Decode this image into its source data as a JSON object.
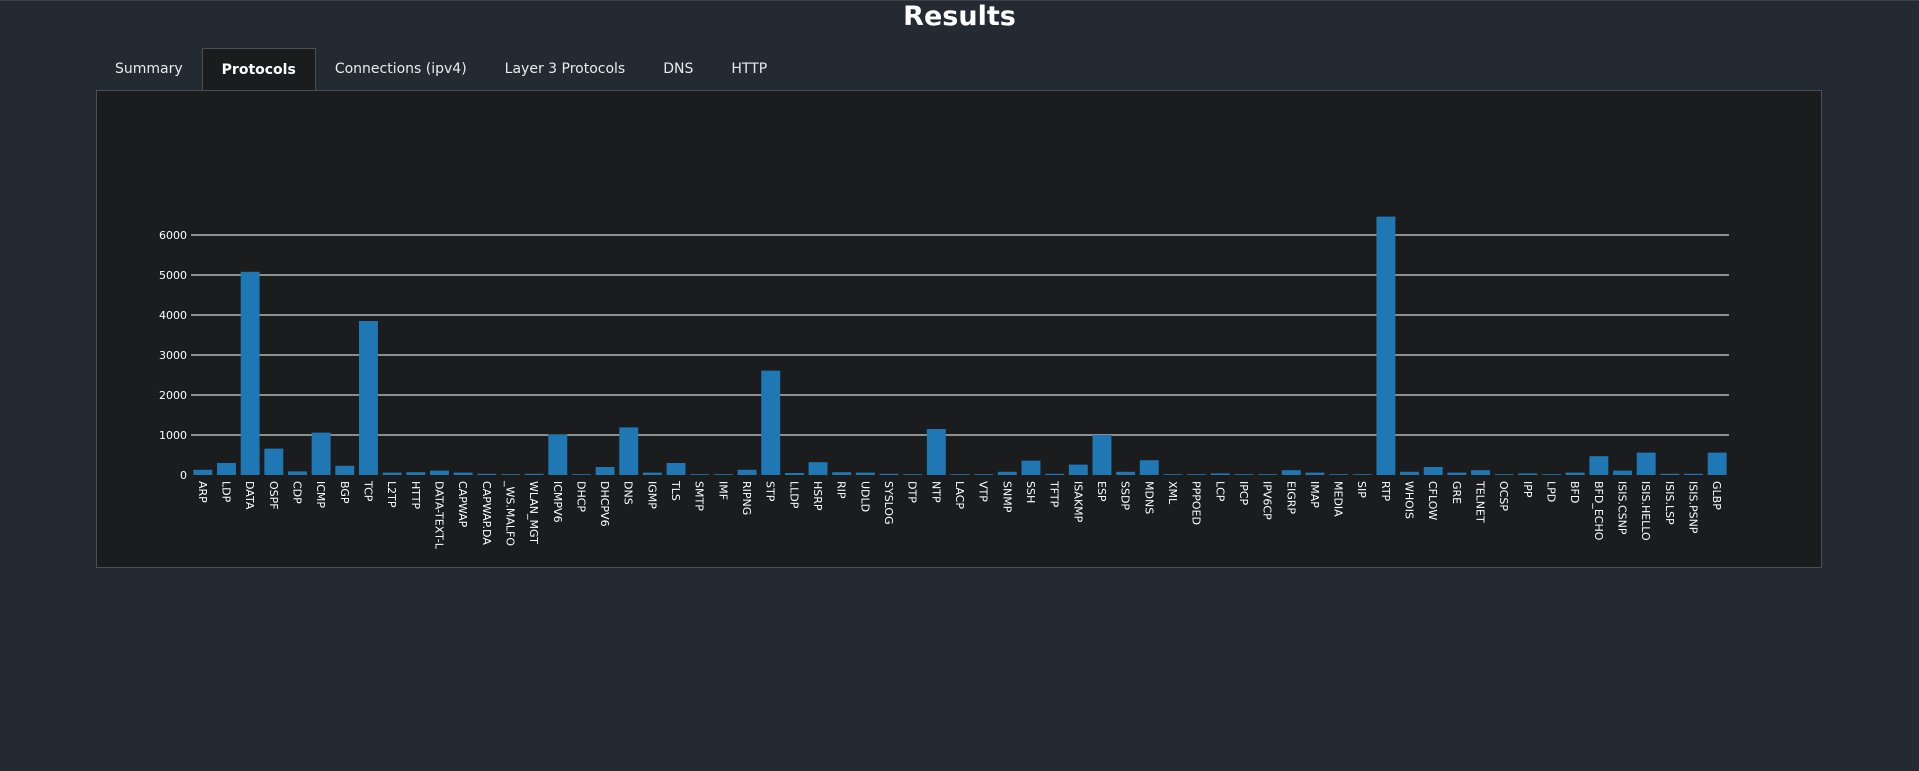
{
  "page": {
    "title": "Results"
  },
  "tabs": [
    {
      "label": "Summary",
      "active": false
    },
    {
      "label": "Protocols",
      "active": true
    },
    {
      "label": "Connections (ipv4)",
      "active": false
    },
    {
      "label": "Layer 3 Protocols",
      "active": false
    },
    {
      "label": "DNS",
      "active": false
    },
    {
      "label": "HTTP",
      "active": false
    }
  ],
  "colors": {
    "background": "#232a32",
    "panel": "#1b1c1e",
    "bar": "#1f77b4"
  },
  "chart_data": {
    "type": "bar",
    "grid": true,
    "ylim": [
      0,
      6000
    ],
    "yticks": [
      0,
      1000,
      2000,
      3000,
      4000,
      5000,
      6000
    ],
    "categories": [
      "ARP",
      "LDP",
      "DATA",
      "OSPF",
      "CDP",
      "ICMP",
      "BGP",
      "TCP",
      "L2TP",
      "HTTP",
      "DATA-TEXT-L",
      "CAPWAP",
      "CAPWAP.DA",
      "_WS.MALFO",
      "WLAN_MGT",
      "ICMPV6",
      "DHCP",
      "DHCPV6",
      "DNS",
      "IGMP",
      "TLS",
      "SMTP",
      "IMF",
      "RIPNG",
      "STP",
      "LLDP",
      "HSRP",
      "RIP",
      "UDLD",
      "SYSLOG",
      "DTP",
      "NTP",
      "LACP",
      "VTP",
      "SNMP",
      "SSH",
      "TFTP",
      "ISAKMP",
      "ESP",
      "SSDP",
      "MDNS",
      "XML",
      "PPPOED",
      "LCP",
      "IPCP",
      "IPV6CP",
      "EIGRP",
      "IMAP",
      "MEDIA",
      "SIP",
      "RTP",
      "WHOIS",
      "CFLOW",
      "GRE",
      "TELNET",
      "OCSP",
      "IPP",
      "LPD",
      "BFD",
      "BFD_ECHO",
      "ISIS.CSNP",
      "ISIS.HELLO",
      "ISIS.LSP",
      "ISIS.PSNP",
      "GLBP"
    ],
    "values": [
      130,
      300,
      5080,
      660,
      90,
      1060,
      230,
      3850,
      60,
      70,
      110,
      60,
      30,
      20,
      30,
      1010,
      20,
      200,
      1190,
      60,
      300,
      20,
      20,
      130,
      2610,
      50,
      320,
      70,
      60,
      30,
      20,
      1150,
      20,
      20,
      80,
      360,
      30,
      260,
      1000,
      80,
      370,
      20,
      20,
      40,
      20,
      20,
      120,
      60,
      20,
      20,
      6460,
      80,
      200,
      60,
      120,
      20,
      40,
      20,
      60,
      470,
      110,
      560,
      30,
      30,
      560
    ]
  }
}
